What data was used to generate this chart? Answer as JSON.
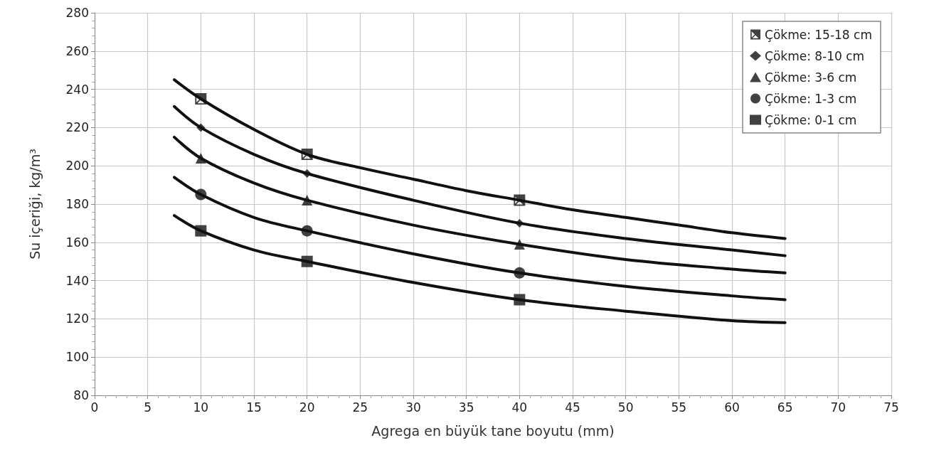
{
  "chart_data": {
    "type": "line",
    "xlabel": "Agrega en büyük tane boyutu (mm)",
    "ylabel": "Su içeriği, kg/m³",
    "xlim": [
      0,
      75
    ],
    "xticks": [
      0,
      5,
      10,
      15,
      20,
      25,
      30,
      35,
      40,
      45,
      50,
      55,
      60,
      65,
      70,
      75
    ],
    "ylim": [
      80,
      280
    ],
    "yticks": [
      80,
      100,
      120,
      140,
      160,
      180,
      200,
      220,
      240,
      260,
      280
    ],
    "grid": true,
    "legend": "top right",
    "series": [
      {
        "name": "Çökme: 15-18 cm",
        "type": "scatter",
        "marker": "cross",
        "color": "#111111",
        "x": [
          10,
          20,
          40
        ],
        "values": [
          235,
          206,
          182
        ]
      },
      {
        "name": "Çökme: 8-10 cm",
        "type": "scatter",
        "marker": "diamond",
        "color": "#111111",
        "x": [
          10,
          20,
          40
        ],
        "values": [
          220,
          196,
          170
        ]
      },
      {
        "name": "Çökme: 3-6 cm",
        "type": "scatter",
        "marker": "triangle",
        "color": "#111111",
        "x": [
          10,
          20,
          40
        ],
        "values": [
          204,
          182,
          159
        ]
      },
      {
        "name": "Çökme: 1-3 cm",
        "type": "scatter",
        "marker": "circle",
        "color": "#111111",
        "x": [
          10,
          20,
          40
        ],
        "values": [
          185,
          166,
          144
        ]
      },
      {
        "name": "Çökme: 0-1 cm",
        "type": "scatter",
        "marker": "square",
        "color": "#111111",
        "x": [
          10,
          20,
          40
        ],
        "values": [
          166,
          150,
          130
        ]
      },
      {
        "marker": "none",
        "color": "#111111",
        "x": [
          7.5,
          10,
          15,
          20,
          25,
          30,
          35,
          40,
          45,
          50,
          55,
          60,
          65
        ],
        "values": [
          245,
          235,
          219,
          206,
          199,
          193,
          187,
          182,
          177,
          173,
          169,
          165,
          162
        ]
      },
      {
        "marker": "none",
        "color": "#111111",
        "x": [
          7.5,
          10,
          15,
          20,
          30,
          40,
          50,
          60,
          65
        ],
        "values": [
          231,
          220,
          206,
          196,
          182,
          170,
          162,
          156,
          153
        ]
      },
      {
        "marker": "none",
        "color": "#111111",
        "x": [
          7.5,
          10,
          15,
          20,
          30,
          40,
          50,
          60,
          65
        ],
        "values": [
          215,
          204,
          191,
          182,
          169,
          159,
          151,
          146,
          144
        ]
      },
      {
        "marker": "none",
        "color": "#111111",
        "x": [
          7.5,
          10,
          15,
          20,
          30,
          40,
          50,
          60,
          65
        ],
        "values": [
          194,
          185,
          173,
          166,
          154,
          144,
          137,
          132,
          130
        ]
      },
      {
        "marker": "none",
        "color": "#111111",
        "x": [
          7.5,
          10,
          15,
          20,
          30,
          40,
          50,
          60,
          65
        ],
        "values": [
          174,
          166,
          156,
          150,
          139,
          130,
          124,
          119,
          118
        ]
      }
    ]
  }
}
